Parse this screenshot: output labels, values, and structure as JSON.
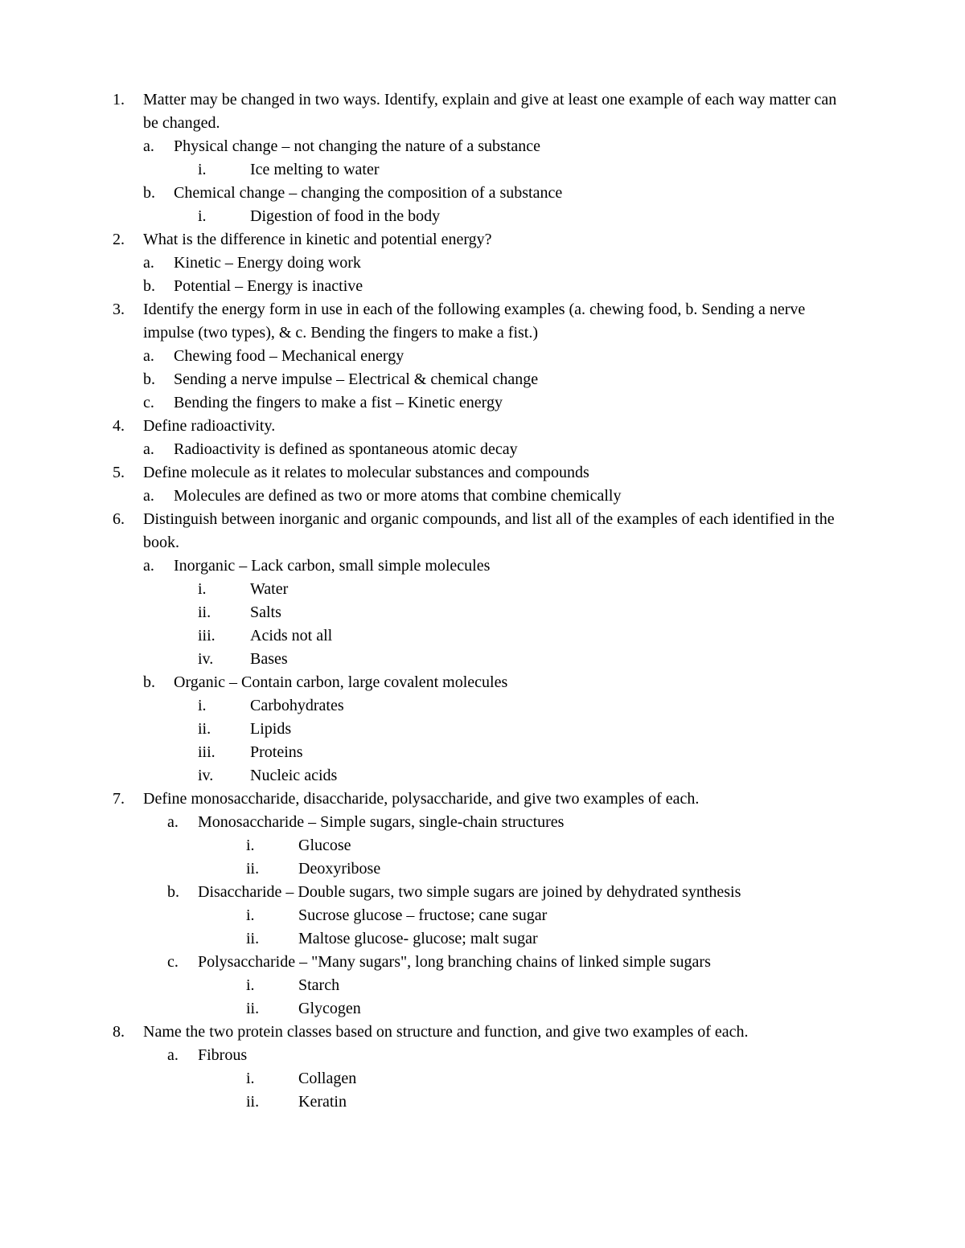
{
  "q1": {
    "num": "1.",
    "text": "Matter may be changed in two ways. Identify, explain and give at least one example of each way matter can be changed.",
    "a": {
      "num": "a.",
      "text": "Physical change – not changing the nature of a substance",
      "i": {
        "num": "i.",
        "text": "Ice melting to water"
      }
    },
    "b": {
      "num": "b.",
      "text": "Chemical change – changing the composition of a substance",
      "i": {
        "num": "i.",
        "text": "Digestion of food in the body"
      }
    }
  },
  "q2": {
    "num": "2.",
    "text": " What is the difference in kinetic and potential energy?",
    "a": {
      "num": "a.",
      "text": "Kinetic – Energy doing work"
    },
    "b": {
      "num": "b.",
      "text": "Potential – Energy is inactive"
    }
  },
  "q3": {
    "num": "3.",
    "text": " Identify the energy form in use in each of the following examples (a. chewing food, b. Sending a nerve impulse (two types), & c. Bending the fingers to make a fist.)",
    "a": {
      "num": "a.",
      "text": "Chewing food – Mechanical energy"
    },
    "b": {
      "num": "b.",
      "text": "Sending a nerve impulse – Electrical & chemical change"
    },
    "c": {
      "num": "c.",
      "text": "Bending the fingers to make a fist – Kinetic energy"
    }
  },
  "q4": {
    "num": "4.",
    "text": "Define radioactivity.",
    "a": {
      "num": "a.",
      "text": "Radioactivity is defined as spontaneous atomic decay"
    }
  },
  "q5": {
    "num": "5.",
    "text": "Define molecule as it relates to molecular substances and compounds",
    "a": {
      "num": "a.",
      "text": "Molecules are defined as two or more atoms that combine chemically"
    }
  },
  "q6": {
    "num": "6.",
    "text": "Distinguish between inorganic and organic compounds, and list all of the examples of each identified in the book.",
    "a": {
      "num": "a.",
      "text": "Inorganic – Lack carbon, small simple molecules",
      "i": {
        "num": "i.",
        "text": "Water"
      },
      "ii": {
        "num": "ii.",
        "text": "Salts"
      },
      "iii": {
        "num": "iii.",
        "text": "Acids not all"
      },
      "iv": {
        "num": "iv.",
        "text": "Bases"
      }
    },
    "b": {
      "num": "b.",
      "text": "Organic – Contain carbon, large covalent molecules",
      "i": {
        "num": "i.",
        "text": "Carbohydrates"
      },
      "ii": {
        "num": "ii.",
        "text": "Lipids"
      },
      "iii": {
        "num": "iii.",
        "text": "Proteins"
      },
      "iv": {
        "num": "iv.",
        "text": "Nucleic acids"
      }
    }
  },
  "q7": {
    "num": "7.",
    "text": "Define monosaccharide, disaccharide, polysaccharide, and give two examples of each.",
    "a": {
      "num": "a.",
      "text": "Monosaccharide – Simple sugars, single-chain structures",
      "i": {
        "num": "i.",
        "text": "Glucose"
      },
      "ii": {
        "num": "ii.",
        "text": "Deoxyribose"
      }
    },
    "b": {
      "num": "b.",
      "text": "Disaccharide – Double sugars, two simple sugars are joined by dehydrated synthesis",
      "i": {
        "num": "i.",
        "text": "Sucrose glucose – fructose; cane sugar"
      },
      "ii": {
        "num": "ii.",
        "text": "Maltose glucose- glucose; malt sugar"
      }
    },
    "c": {
      "num": "c.",
      "text": "Polysaccharide – \"Many sugars\", long branching chains of linked simple sugars",
      "i": {
        "num": "i.",
        "text": "Starch"
      },
      "ii": {
        "num": "ii.",
        "text": "Glycogen"
      }
    }
  },
  "q8": {
    "num": "8.",
    "text": "Name the two protein classes based on structure and function, and give two examples of each.",
    "a": {
      "num": "a.",
      "text": "Fibrous",
      "i": {
        "num": "i.",
        "text": "Collagen"
      },
      "ii": {
        "num": "ii.",
        "text": "Keratin"
      }
    }
  }
}
